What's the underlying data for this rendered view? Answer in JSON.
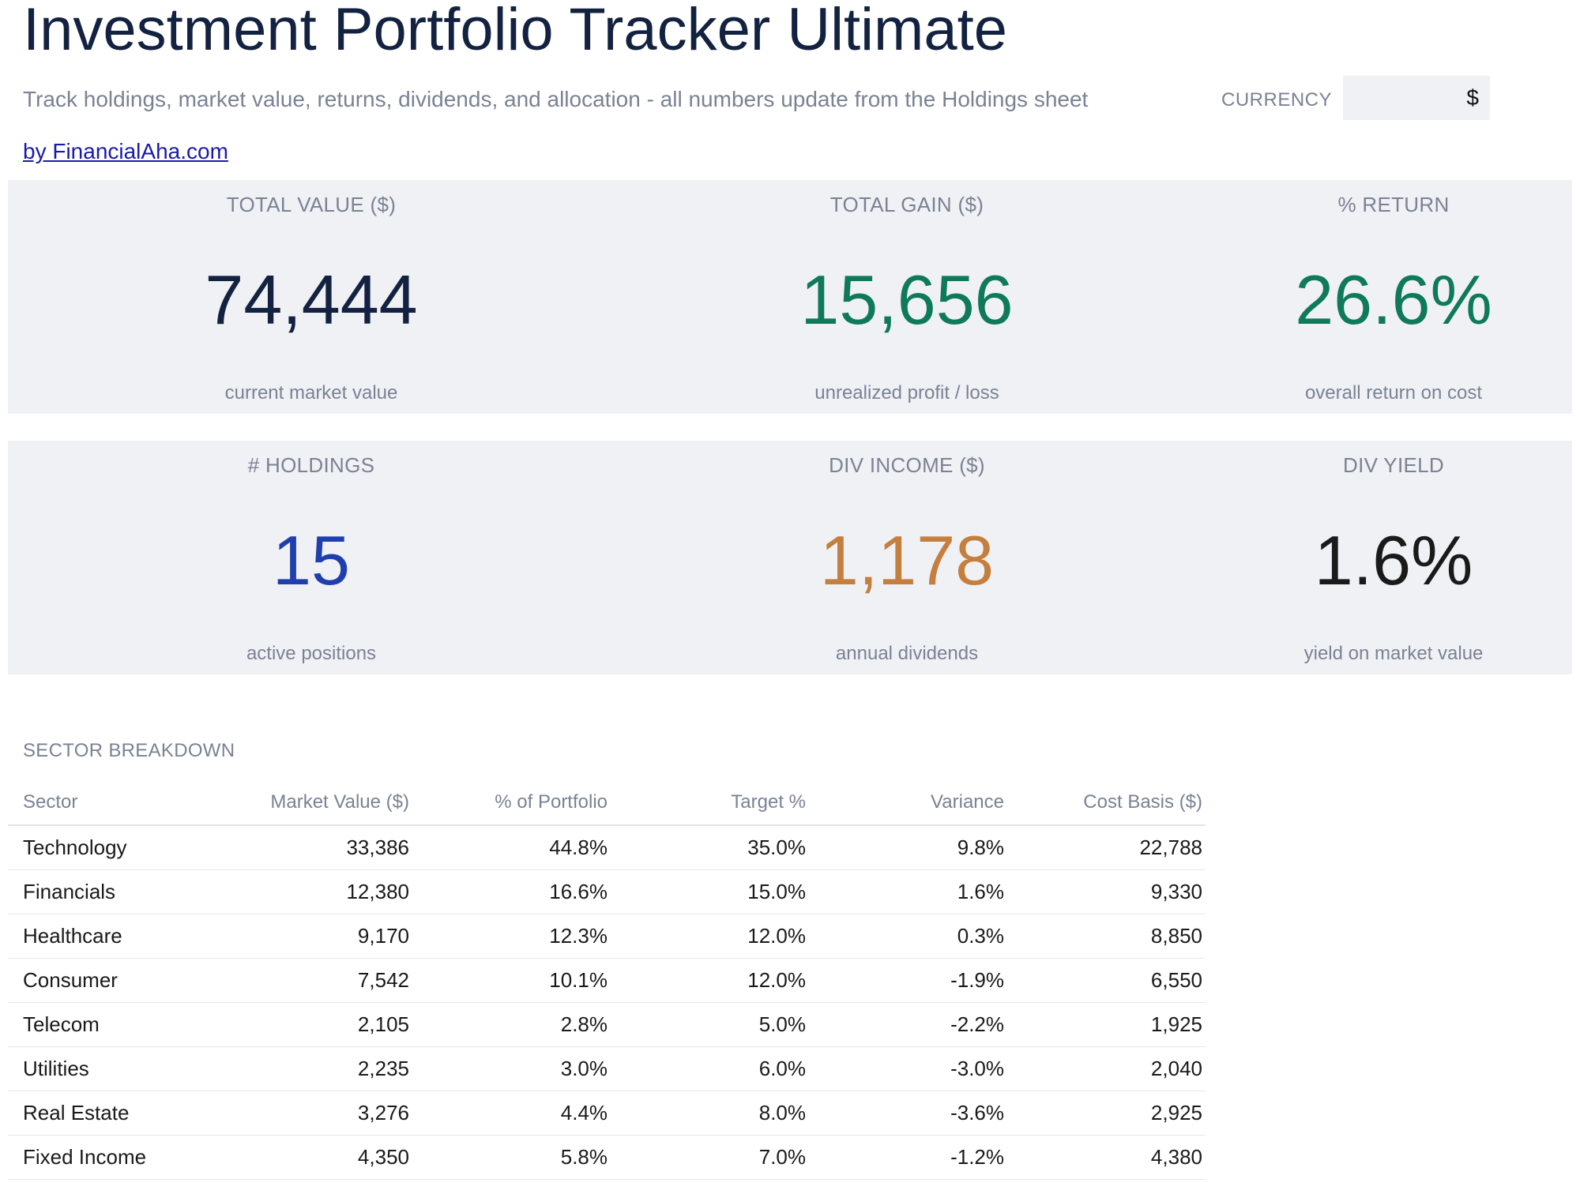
{
  "header": {
    "title": "Investment Portfolio Tracker Ultimate",
    "subtitle": "Track holdings, market value, returns, dividends, and allocation - all numbers update from the Holdings sheet",
    "currency_label": "CURRENCY",
    "currency_value": "$",
    "byline": "by FinancialAha.com"
  },
  "kpis": [
    {
      "label": "TOTAL VALUE ($)",
      "value": "74,444",
      "note": "current market value",
      "color": "#132240"
    },
    {
      "label": "TOTAL GAIN ($)",
      "value": "15,656",
      "note": "unrealized profit / loss",
      "color": "#0f7a5a"
    },
    {
      "label": "% RETURN",
      "value": "26.6%",
      "note": "overall return on cost",
      "color": "#0f7a5a"
    },
    {
      "label": "# HOLDINGS",
      "value": "15",
      "note": "active positions",
      "color": "#1f3fae"
    },
    {
      "label": "DIV INCOME ($)",
      "value": "1,178",
      "note": "annual dividends",
      "color": "#c47f3e"
    },
    {
      "label": "DIV YIELD",
      "value": "1.6%",
      "note": "yield on market value",
      "color": "#1a1a1a"
    }
  ],
  "sector_breakdown": {
    "title": "SECTOR BREAKDOWN",
    "columns": [
      "Sector",
      "Market Value ($)",
      "% of Portfolio",
      "Target %",
      "Variance",
      "Cost Basis ($)"
    ],
    "rows": [
      [
        "Technology",
        "33,386",
        "44.8%",
        "35.0%",
        "9.8%",
        "22,788"
      ],
      [
        "Financials",
        "12,380",
        "16.6%",
        "15.0%",
        "1.6%",
        "9,330"
      ],
      [
        "Healthcare",
        "9,170",
        "12.3%",
        "12.0%",
        "0.3%",
        "8,850"
      ],
      [
        "Consumer",
        "7,542",
        "10.1%",
        "12.0%",
        "-1.9%",
        "6,550"
      ],
      [
        "Telecom",
        "2,105",
        "2.8%",
        "5.0%",
        "-2.2%",
        "1,925"
      ],
      [
        "Utilities",
        "2,235",
        "3.0%",
        "6.0%",
        "-3.0%",
        "2,040"
      ],
      [
        "Real Estate",
        "3,276",
        "4.4%",
        "8.0%",
        "-3.6%",
        "2,925"
      ],
      [
        "Fixed Income",
        "4,350",
        "5.8%",
        "7.0%",
        "-1.2%",
        "4,380"
      ]
    ]
  }
}
